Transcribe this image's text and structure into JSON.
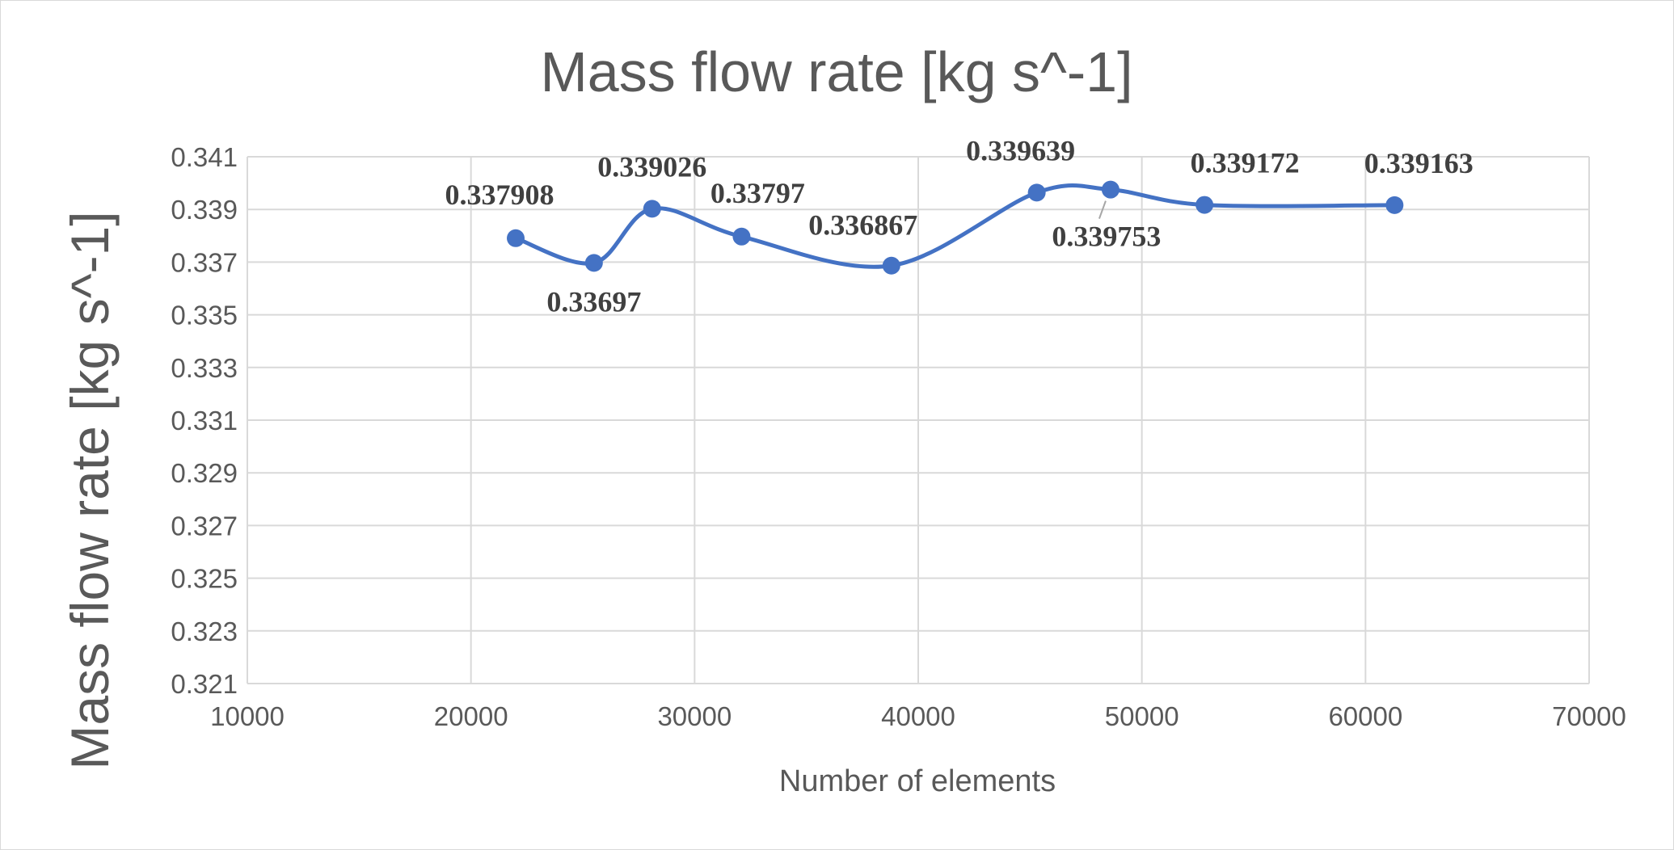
{
  "chart_data": {
    "type": "scatter",
    "title": "Mass flow rate [kg s^-1]",
    "xlabel": "Number of elements",
    "ylabel": "Mass flow rate [kg s^-1]",
    "xlim": [
      10000,
      70000
    ],
    "ylim": [
      0.321,
      0.341
    ],
    "x_ticks": [
      "10000",
      "20000",
      "30000",
      "40000",
      "50000",
      "60000",
      "70000"
    ],
    "y_ticks": [
      "0.321",
      "0.323",
      "0.325",
      "0.327",
      "0.329",
      "0.331",
      "0.333",
      "0.335",
      "0.337",
      "0.339",
      "0.341"
    ],
    "grid": true,
    "smooth_line": true,
    "series": [
      {
        "x": [
          22000,
          25500,
          28100,
          32100,
          38800,
          45300,
          48600,
          52800,
          61300
        ],
        "y": [
          0.337908,
          0.33697,
          0.339026,
          0.33797,
          0.336867,
          0.339639,
          0.339753,
          0.339172,
          0.339163
        ],
        "labels": [
          "0.337908",
          "0.33697",
          "0.339026",
          "0.33797",
          "0.336867",
          "0.339639",
          "0.339753",
          "0.339172",
          "0.339163"
        ]
      }
    ],
    "colors": {
      "series": "#4472c4",
      "grid": "#d9d9d9",
      "text": "#595959"
    }
  }
}
